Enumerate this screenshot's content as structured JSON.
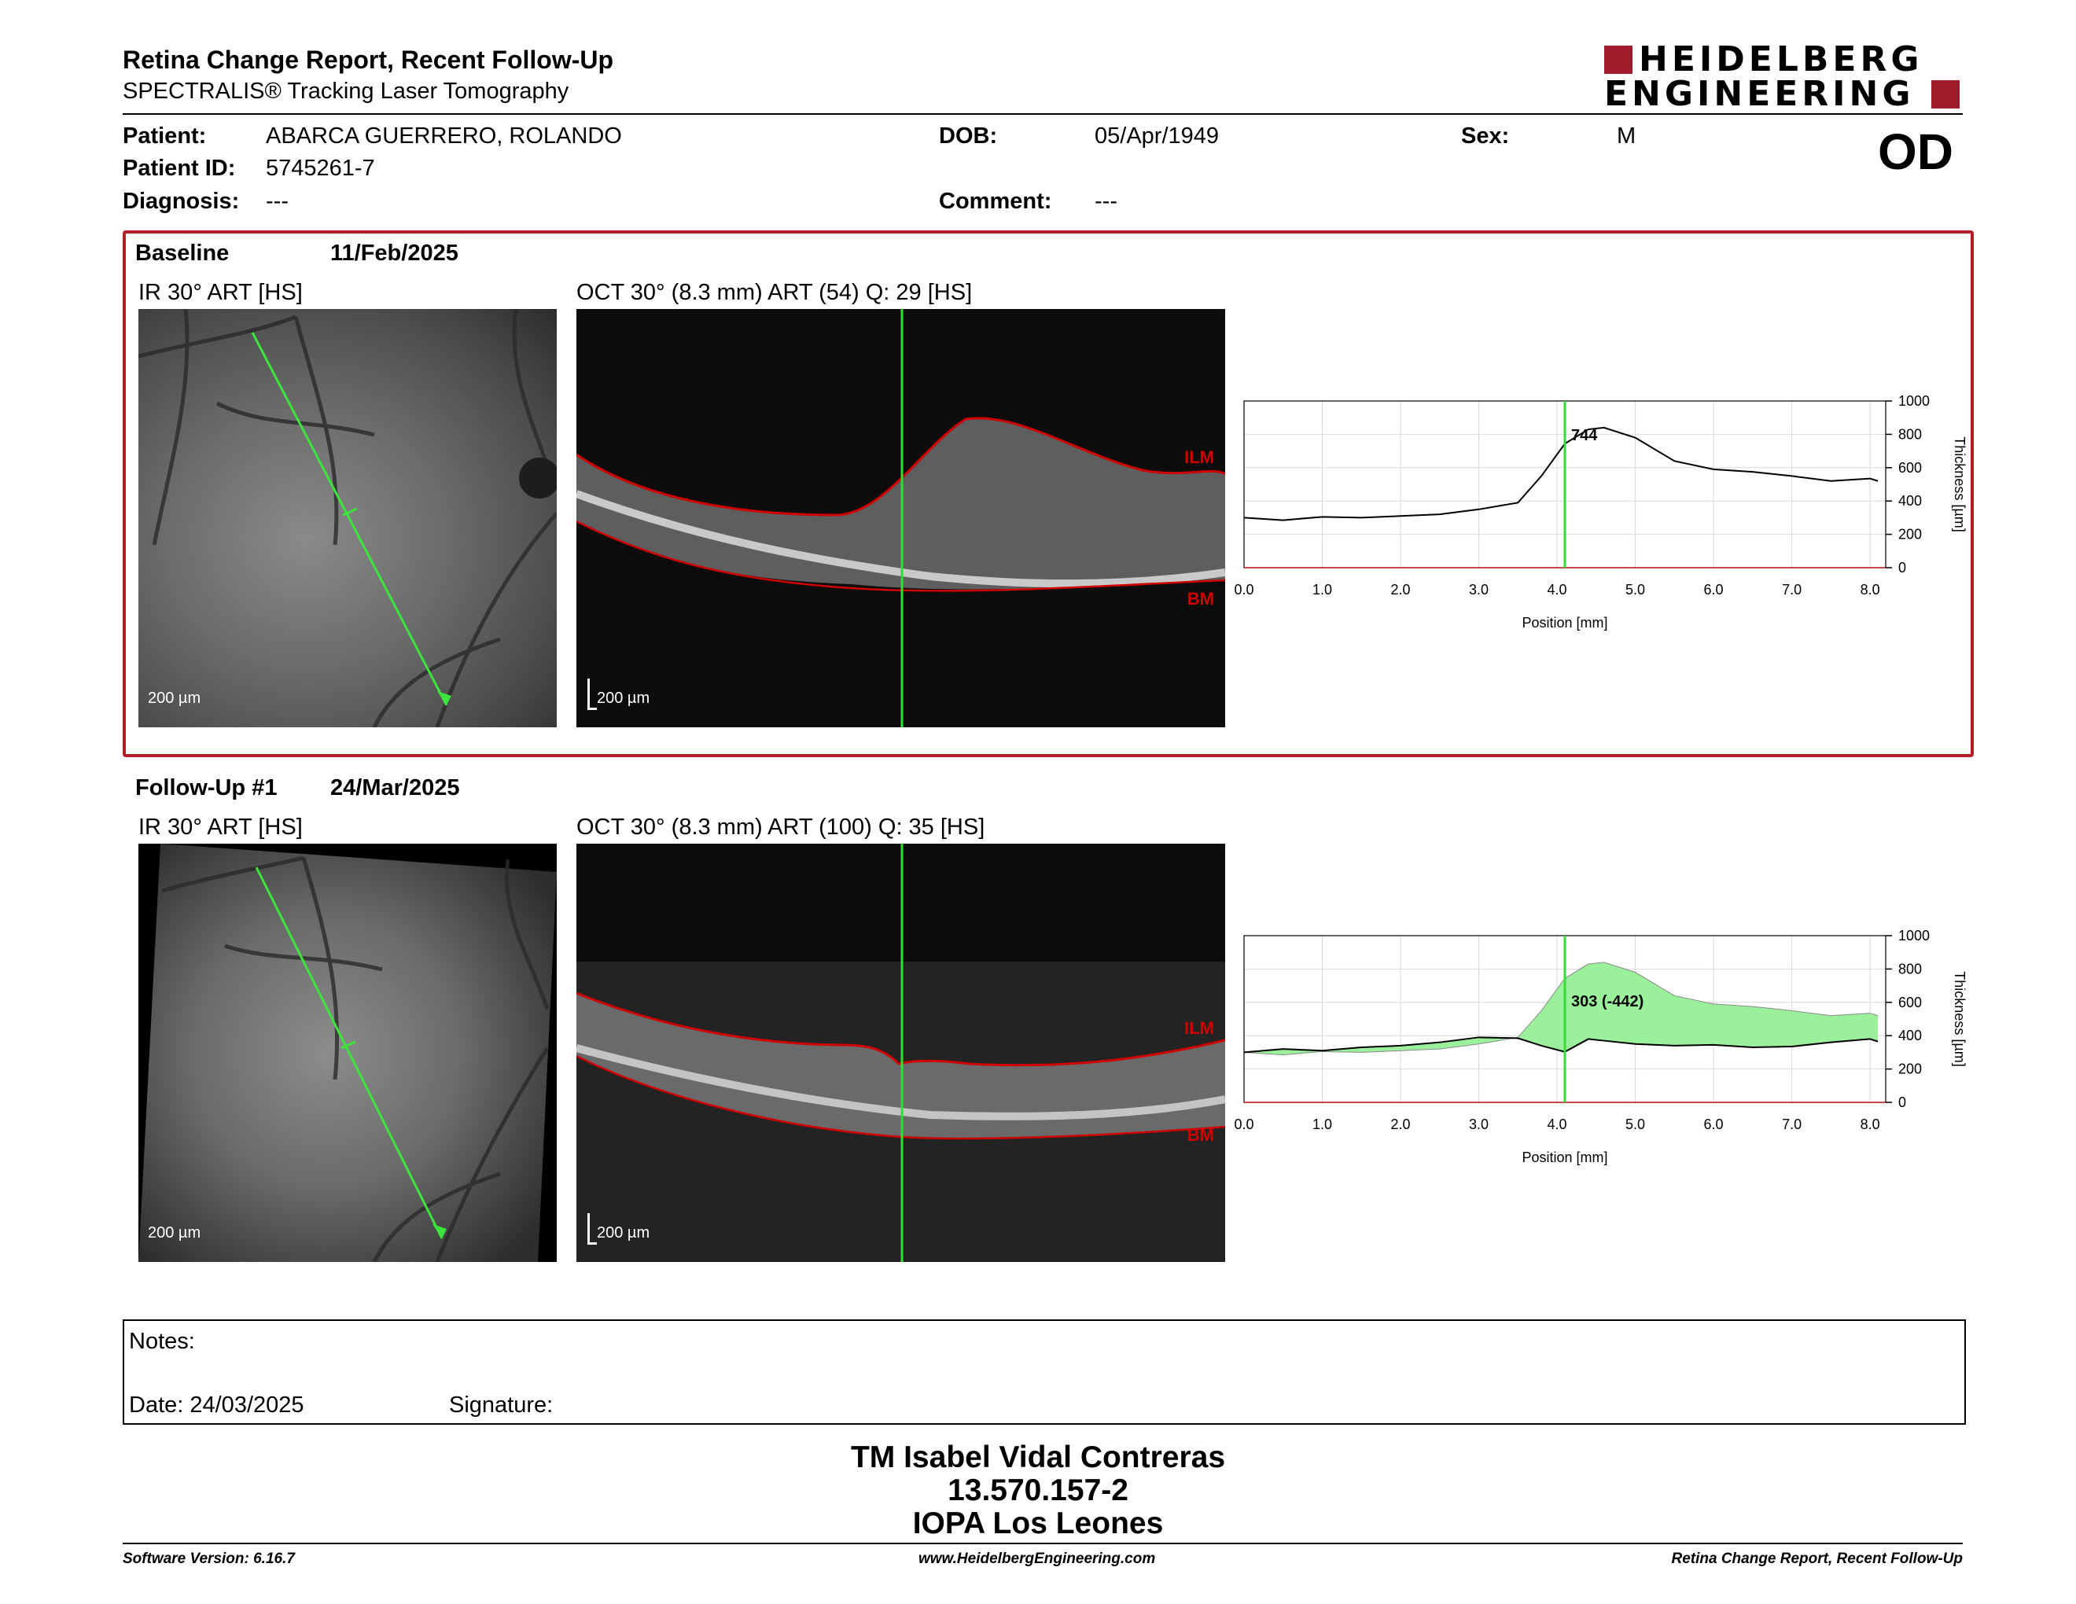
{
  "header": {
    "title": "Retina Change Report, Recent Follow-Up",
    "subtitle": "SPECTRALIS® Tracking Laser Tomography",
    "logo_line1": "HEIDELBERG",
    "logo_line2": "ENGINEERING"
  },
  "patient": {
    "patient_label": "Patient:",
    "patient_value": "ABARCA GUERRERO, ROLANDO",
    "id_label": "Patient ID:",
    "id_value": "5745261-7",
    "diagnosis_label": "Diagnosis:",
    "diagnosis_value": "---",
    "dob_label": "DOB:",
    "dob_value": "05/Apr/1949",
    "comment_label": "Comment:",
    "comment_value": "---",
    "sex_label": "Sex:",
    "sex_value": "M",
    "eye": "OD"
  },
  "baseline": {
    "label": "Baseline",
    "date": "11/Feb/2025",
    "ir_title": "IR 30° ART [HS]",
    "oct_title": "OCT 30° (8.3 mm) ART (54) Q: 29 [HS]",
    "ir_scale": "200 µm",
    "oct_scale": "200 µm",
    "ilm": "ILM",
    "bm": "BM",
    "marker_label": "744"
  },
  "followup": {
    "label": "Follow-Up #1",
    "date": "24/Mar/2025",
    "ir_title": "IR 30° ART [HS]",
    "oct_title": "OCT 30° (8.3 mm) ART (100) Q: 35 [HS]",
    "ir_scale": "200 µm",
    "oct_scale": "200 µm",
    "ilm": "ILM",
    "bm": "BM",
    "marker_label": "303 (-442)"
  },
  "chart_data": [
    {
      "type": "line",
      "xlabel": "Position [mm]",
      "ylabel": "Thickness [µm]",
      "xlim": [
        0,
        8.2
      ],
      "ylim": [
        0,
        1000
      ],
      "x_ticks": [
        "0.0",
        "1.0",
        "2.0",
        "3.0",
        "4.0",
        "5.0",
        "6.0",
        "7.0",
        "8.0"
      ],
      "y_ticks": [
        "0",
        "200",
        "400",
        "600",
        "800",
        "1000"
      ],
      "marker_x": 4.1,
      "marker_label": "744",
      "grid": true,
      "series": [
        {
          "color": "#000000",
          "x": [
            0,
            0.5,
            1,
            1.5,
            2,
            2.5,
            3,
            3.5,
            3.8,
            4.1,
            4.4,
            4.6,
            5.0,
            5.5,
            6.0,
            6.5,
            7.0,
            7.5,
            8.0,
            8.1
          ],
          "values": [
            300,
            285,
            305,
            300,
            310,
            320,
            350,
            390,
            550,
            744,
            830,
            840,
            780,
            640,
            590,
            575,
            550,
            520,
            535,
            520
          ]
        }
      ]
    },
    {
      "type": "area",
      "xlabel": "Position [mm]",
      "ylabel": "Thickness [µm]",
      "xlim": [
        0,
        8.2
      ],
      "ylim": [
        0,
        1000
      ],
      "x_ticks": [
        "0.0",
        "1.0",
        "2.0",
        "3.0",
        "4.0",
        "5.0",
        "6.0",
        "7.0",
        "8.0"
      ],
      "y_ticks": [
        "0",
        "200",
        "400",
        "600",
        "800",
        "1000"
      ],
      "marker_x": 4.1,
      "marker_label": "303 (-442)",
      "grid": true,
      "series": [
        {
          "color": "#000000",
          "x": [
            0,
            0.5,
            1,
            1.5,
            2,
            2.5,
            3,
            3.5,
            3.8,
            4.1,
            4.4,
            4.6,
            5.0,
            5.5,
            6.0,
            6.5,
            7.0,
            7.5,
            8.0,
            8.1
          ],
          "values": [
            300,
            320,
            310,
            330,
            340,
            360,
            390,
            385,
            340,
            303,
            380,
            370,
            350,
            340,
            345,
            330,
            335,
            360,
            380,
            365
          ]
        },
        {
          "color": "#000000",
          "x": [
            0,
            0.5,
            1,
            1.5,
            2,
            2.5,
            3,
            3.5,
            3.8,
            4.1,
            4.4,
            4.6,
            5.0,
            5.5,
            6.0,
            6.5,
            7.0,
            7.5,
            8.0,
            8.1
          ],
          "values": [
            300,
            285,
            305,
            300,
            310,
            320,
            350,
            390,
            550,
            744,
            830,
            840,
            780,
            640,
            590,
            575,
            550,
            520,
            535,
            520
          ]
        }
      ],
      "fill_color": "#90ee90"
    }
  ],
  "notes": {
    "notes_label": "Notes:",
    "date_label": "Date: 24/03/2025",
    "signature_label": "Signature:"
  },
  "signature_block": {
    "line1": "TM Isabel Vidal Contreras",
    "line2": "13.570.157-2",
    "line3": "IOPA Los Leones"
  },
  "footer": {
    "software": "Software Version: 6.16.7",
    "url": "www.HeidelbergEngineering.com",
    "report": "Retina Change Report, Recent Follow-Up"
  }
}
